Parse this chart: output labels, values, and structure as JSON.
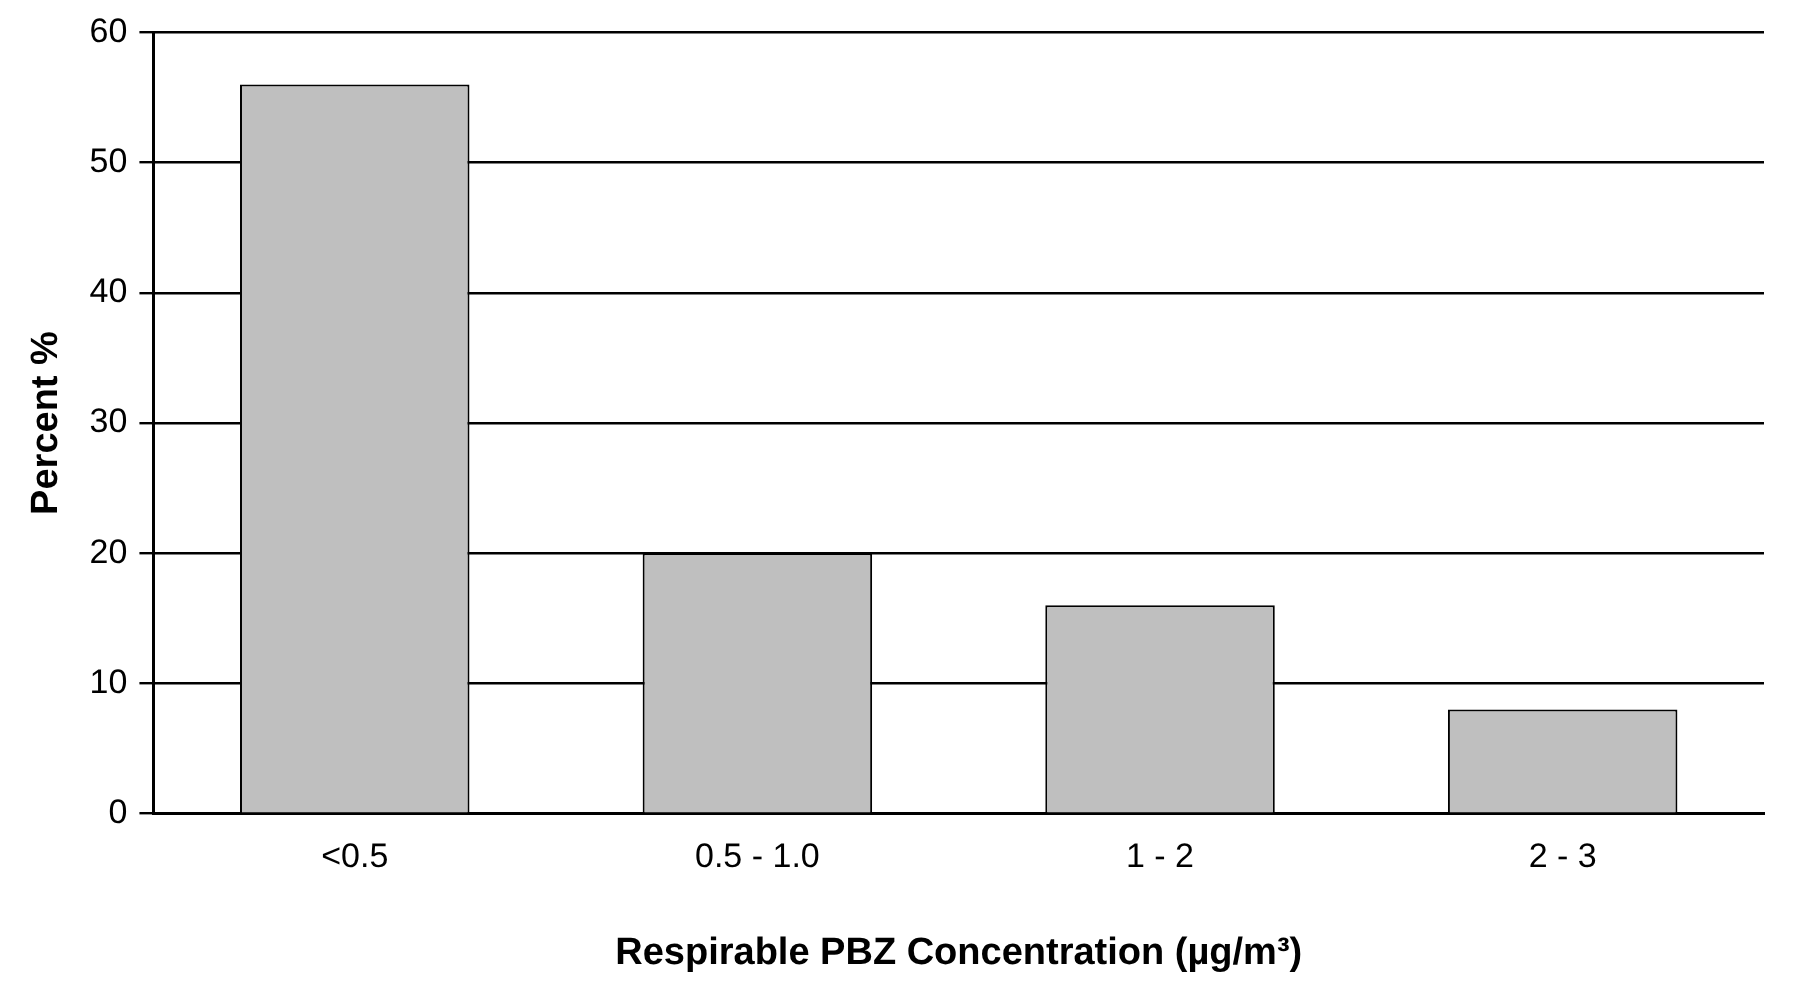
{
  "chart_data": {
    "type": "bar",
    "xlabel": "Respirable PBZ Concentration (µg/m³)",
    "ylabel": "Percent %",
    "categories": [
      "<0.5",
      "0.5 - 1.0",
      "1 - 2",
      "2 - 3"
    ],
    "values": [
      56,
      20,
      16,
      8
    ],
    "color": "#bfbfbf",
    "ylim": [
      0,
      60
    ],
    "yticks": [
      0,
      10,
      20,
      30,
      40,
      50,
      60
    ],
    "grid": "y",
    "legend": false
  }
}
